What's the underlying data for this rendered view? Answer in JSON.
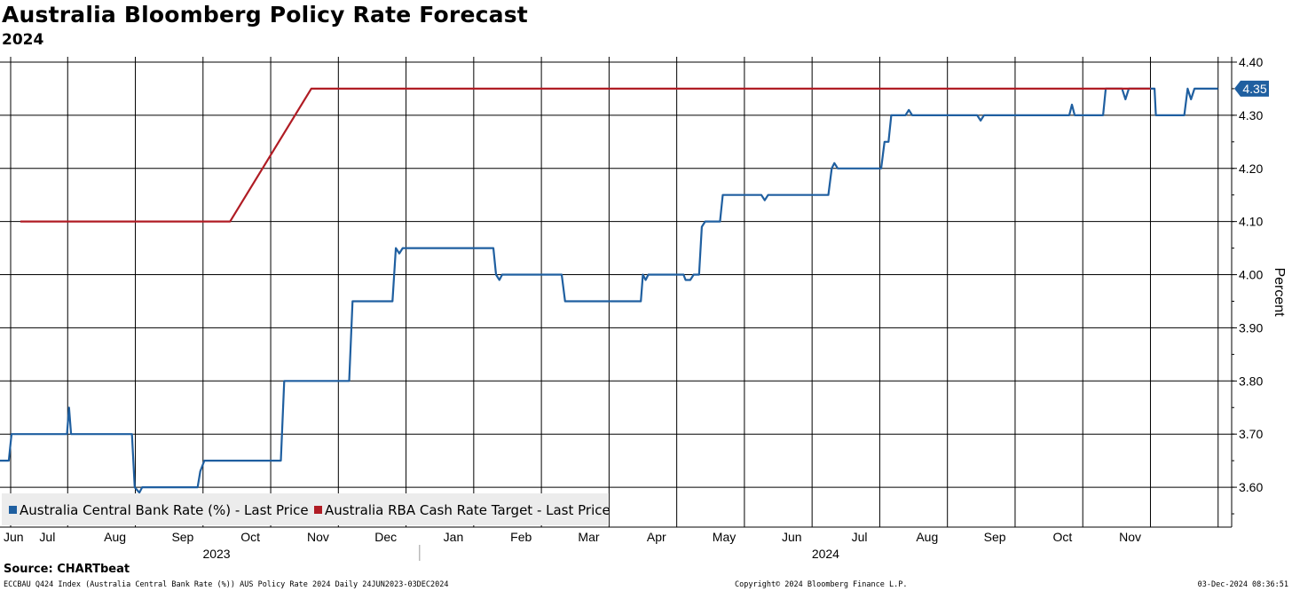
{
  "title": "Australia Bloomberg Policy Rate Forecast",
  "subtitle": "2024",
  "source": "Source: CHARTbeat",
  "footer": {
    "left": "ECCBAU Q424 Index (Australia Central Bank Rate (%)) AUS Policy Rate 2024  Daily 24JUN2023-03DEC2024",
    "center": "Copyright© 2024 Bloomberg Finance L.P.",
    "right": "03-Dec-2024 08:36:51"
  },
  "colors": {
    "blue": "#1f5fa0",
    "red": "#b01c24",
    "grid": "#000000"
  },
  "chart_data": {
    "type": "line",
    "ylabel": "Percent",
    "ylim": [
      3.525,
      4.41
    ],
    "yticks": [
      3.6,
      3.7,
      3.8,
      3.9,
      4.0,
      4.1,
      4.2,
      4.3,
      4.4
    ],
    "ytick_labels": [
      "3.60",
      "3.70",
      "3.80",
      "3.90",
      "4.00",
      "4.10",
      "4.20",
      "4.30",
      "4.40"
    ],
    "x_unit": "months since Jun 1, 2023",
    "xlim": [
      0.0,
      18.2
    ],
    "month_labels": [
      "Jun",
      "Jul",
      "Aug",
      "Sep",
      "Oct",
      "Nov",
      "Dec",
      "Jan",
      "Feb",
      "Mar",
      "Apr",
      "May",
      "Jun",
      "Jul",
      "Aug",
      "Sep",
      "Oct",
      "Nov"
    ],
    "month_label_positions": [
      0.2,
      0.7,
      1.7,
      2.7,
      3.7,
      4.7,
      5.7,
      6.7,
      7.7,
      8.7,
      9.7,
      10.7,
      11.7,
      12.7,
      13.7,
      14.7,
      15.7,
      16.7
    ],
    "year_labels": [
      {
        "text": "2023",
        "x": 3.2
      },
      {
        "text": "2024",
        "x": 12.2
      }
    ],
    "year_divider_x": 6.2,
    "last_value_label": "4.35",
    "series": [
      {
        "name": "Australia Central Bank Rate (%) - Last Price",
        "color": "#1f5fa0",
        "points": [
          [
            0.0,
            3.65
          ],
          [
            0.13,
            3.65
          ],
          [
            0.17,
            3.7
          ],
          [
            0.99,
            3.7
          ],
          [
            1.02,
            3.75
          ],
          [
            1.05,
            3.7
          ],
          [
            1.95,
            3.7
          ],
          [
            1.99,
            3.6
          ],
          [
            2.06,
            3.59
          ],
          [
            2.1,
            3.6
          ],
          [
            2.92,
            3.6
          ],
          [
            2.96,
            3.63
          ],
          [
            3.02,
            3.65
          ],
          [
            4.15,
            3.65
          ],
          [
            4.2,
            3.8
          ],
          [
            5.16,
            3.8
          ],
          [
            5.21,
            3.95
          ],
          [
            5.8,
            3.95
          ],
          [
            5.85,
            4.05
          ],
          [
            5.9,
            4.04
          ],
          [
            5.95,
            4.05
          ],
          [
            7.29,
            4.05
          ],
          [
            7.33,
            4.0
          ],
          [
            7.38,
            3.99
          ],
          [
            7.42,
            4.0
          ],
          [
            8.3,
            4.0
          ],
          [
            8.35,
            3.95
          ],
          [
            9.47,
            3.95
          ],
          [
            9.5,
            4.0
          ],
          [
            9.54,
            3.99
          ],
          [
            9.58,
            4.0
          ],
          [
            10.1,
            4.0
          ],
          [
            10.13,
            3.99
          ],
          [
            10.2,
            3.99
          ],
          [
            10.25,
            4.0
          ],
          [
            10.33,
            4.0
          ],
          [
            10.37,
            4.09
          ],
          [
            10.42,
            4.1
          ],
          [
            10.64,
            4.1
          ],
          [
            10.68,
            4.15
          ],
          [
            11.25,
            4.15
          ],
          [
            11.3,
            4.14
          ],
          [
            11.35,
            4.15
          ],
          [
            12.24,
            4.15
          ],
          [
            12.29,
            4.2
          ],
          [
            12.33,
            4.21
          ],
          [
            12.38,
            4.2
          ],
          [
            13.02,
            4.2
          ],
          [
            13.07,
            4.25
          ],
          [
            13.13,
            4.25
          ],
          [
            13.17,
            4.3
          ],
          [
            13.38,
            4.3
          ],
          [
            13.43,
            4.31
          ],
          [
            13.48,
            4.3
          ],
          [
            14.44,
            4.3
          ],
          [
            14.49,
            4.29
          ],
          [
            14.54,
            4.3
          ],
          [
            15.8,
            4.3
          ],
          [
            15.84,
            4.32
          ],
          [
            15.88,
            4.3
          ],
          [
            16.3,
            4.3
          ],
          [
            16.34,
            4.35
          ],
          [
            16.58,
            4.35
          ],
          [
            16.63,
            4.33
          ],
          [
            16.68,
            4.35
          ],
          [
            17.06,
            4.35
          ],
          [
            17.08,
            4.3
          ],
          [
            17.5,
            4.3
          ],
          [
            17.55,
            4.35
          ],
          [
            17.6,
            4.33
          ],
          [
            17.65,
            4.35
          ],
          [
            18.0,
            4.35
          ]
        ]
      },
      {
        "name": "Australia RBA Cash Rate Target - Last Price",
        "color": "#b01c24",
        "points": [
          [
            0.3,
            4.1
          ],
          [
            3.4,
            4.1
          ],
          [
            4.6,
            4.35
          ],
          [
            17.0,
            4.35
          ]
        ]
      }
    ]
  }
}
